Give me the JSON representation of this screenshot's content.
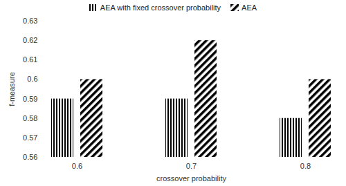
{
  "chart_data": {
    "type": "bar",
    "categories": [
      "0.6",
      "0.7",
      "0.8"
    ],
    "series": [
      {
        "name": "AEA with fixed crossover probability",
        "color": "#000000",
        "values": [
          0.59,
          0.59,
          0.58
        ]
      },
      {
        "name": "AEA",
        "color": "#000000",
        "values": [
          0.6,
          0.62,
          0.6
        ]
      }
    ],
    "x_label": "crossover probability",
    "y_label": "f-measure",
    "ylim": [
      0.56,
      0.63
    ],
    "yticks": [
      0.56,
      0.57,
      0.58,
      0.59,
      0.6,
      0.61,
      0.62,
      0.63
    ],
    "grid": false,
    "legend": "top"
  }
}
